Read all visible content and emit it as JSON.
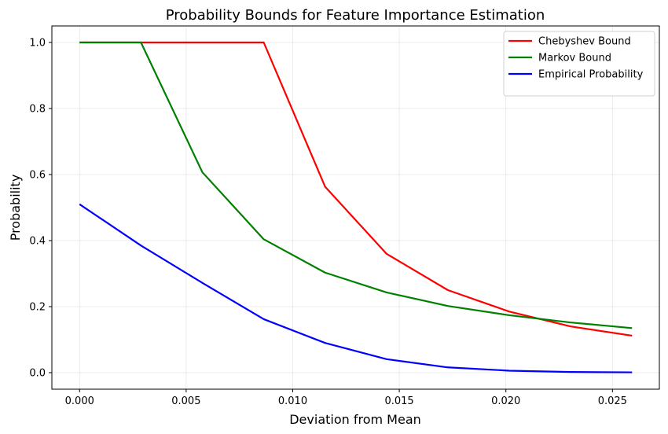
{
  "chart_data": {
    "type": "line",
    "title": "Probability Bounds for Feature Importance Estimation",
    "xlabel": "Deviation from Mean",
    "ylabel": "Probability",
    "xlim": [
      -0.0013,
      0.0272
    ],
    "ylim": [
      -0.05,
      1.05
    ],
    "x_ticks": [
      {
        "value": 0.0,
        "label": "0.000"
      },
      {
        "value": 0.005,
        "label": "0.005"
      },
      {
        "value": 0.01,
        "label": "0.010"
      },
      {
        "value": 0.015,
        "label": "0.015"
      },
      {
        "value": 0.02,
        "label": "0.020"
      },
      {
        "value": 0.025,
        "label": "0.025"
      }
    ],
    "y_ticks": [
      {
        "value": 0.0,
        "label": "0.0"
      },
      {
        "value": 0.2,
        "label": "0.2"
      },
      {
        "value": 0.4,
        "label": "0.4"
      },
      {
        "value": 0.6,
        "label": "0.6"
      },
      {
        "value": 0.8,
        "label": "0.8"
      },
      {
        "value": 1.0,
        "label": "1.0"
      }
    ],
    "grid": true,
    "legend_position": "top-right",
    "x": [
      0.0,
      0.00288,
      0.00576,
      0.00864,
      0.01152,
      0.0144,
      0.01728,
      0.02016,
      0.02304,
      0.02592
    ],
    "series": [
      {
        "name": "Chebyshev Bound",
        "color": "#ff0000",
        "values": [
          1.0,
          1.0,
          1.0,
          1.0,
          0.563,
          0.36,
          0.25,
          0.185,
          0.14,
          0.112
        ]
      },
      {
        "name": "Markov Bound",
        "color": "#008000",
        "values": [
          1.0,
          1.0,
          0.607,
          0.404,
          0.303,
          0.243,
          0.202,
          0.174,
          0.152,
          0.135
        ]
      },
      {
        "name": "Empirical Probability",
        "color": "#0000ff",
        "values": [
          0.51,
          0.385,
          0.272,
          0.162,
          0.09,
          0.041,
          0.016,
          0.006,
          0.002,
          0.001
        ]
      }
    ]
  }
}
